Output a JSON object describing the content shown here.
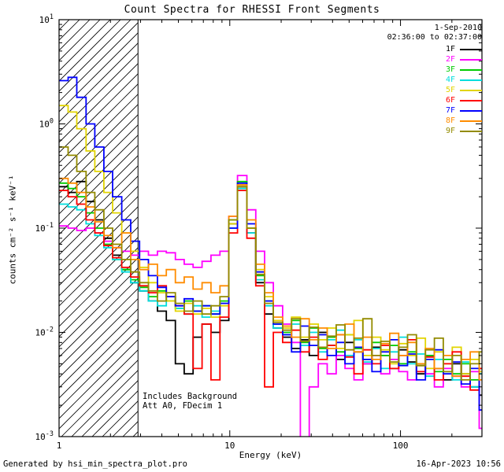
{
  "legend": {
    "date": "1-Sep-2010",
    "time_range": "02:36:00 to 02:37:00"
  },
  "annotations": {
    "line1": "Includes Background",
    "line2": "Att A0, FDecim 1"
  },
  "footer": {
    "left": "Generated by hsi_min_spectra_plot.pro",
    "right": "16-Apr-2023 10:56"
  },
  "chart_data": {
    "type": "line",
    "style": "stepped-histogram",
    "title": "Count Spectra for RHESSI Front Segments",
    "background": "#ffffff",
    "axis_color": "#000000",
    "grid": false,
    "legend_position": "top-right-inside",
    "x_axis": {
      "label": "Energy (keV)",
      "scale": "log",
      "range": [
        1,
        300
      ],
      "ticks": [
        {
          "label": "1",
          "value": 1
        },
        {
          "label": "10",
          "value": 10
        },
        {
          "label": "100",
          "value": 100
        }
      ]
    },
    "y_axis": {
      "label": "counts cm⁻² s⁻¹ keV⁻¹",
      "scale": "log",
      "range": [
        0.001,
        10
      ],
      "ticks": [
        {
          "label": "10⁻³",
          "exponent": -3,
          "value": 0.001
        },
        {
          "label": "10⁻²",
          "exponent": -2,
          "value": 0.01
        },
        {
          "label": "10⁻¹",
          "exponent": -1,
          "value": 0.1
        },
        {
          "label": "10⁰",
          "exponent": 0,
          "value": 1
        },
        {
          "label": "10¹",
          "exponent": 1,
          "value": 10
        }
      ]
    },
    "hatched_region": {
      "x_start": 1,
      "x_end": 2.9,
      "style": "diagonal-hatch"
    },
    "energies_keV": [
      1.0,
      1.13,
      1.27,
      1.44,
      1.62,
      1.83,
      2.06,
      2.33,
      2.63,
      2.96,
      3.34,
      3.77,
      4.25,
      4.8,
      5.41,
      6.1,
      6.88,
      7.76,
      8.76,
      9.88,
      11.1,
      12.6,
      14.2,
      16.0,
      18.0,
      20.4,
      23.0,
      25.9,
      29.2,
      33.0,
      37.2,
      42.0,
      47.3,
      53.4,
      60.2,
      68.0,
      76.7,
      86.5,
      97.6,
      110,
      124,
      140,
      158,
      178,
      201,
      227,
      256,
      289
    ],
    "series": [
      {
        "name": "1F",
        "color": "#000000",
        "values": [
          0.25,
          0.22,
          0.28,
          0.18,
          0.12,
          0.08,
          0.055,
          0.04,
          0.03,
          0.025,
          0.02,
          0.016,
          0.013,
          0.005,
          0.004,
          0.009,
          0.012,
          0.01,
          0.013,
          0.11,
          0.25,
          0.09,
          0.03,
          0.015,
          0.011,
          0.009,
          0.007,
          0.0085,
          0.006,
          0.01,
          0.0075,
          0.0055,
          0.008,
          0.0065,
          0.005,
          0.0072,
          0.006,
          0.0045,
          0.0068,
          0.0052,
          0.004,
          0.006,
          0.0045,
          0.0035,
          0.005,
          0.004,
          0.003,
          0.0025
        ]
      },
      {
        "name": "2F",
        "color": "#ff00ff",
        "values": [
          0.105,
          0.1,
          0.095,
          0.1,
          0.09,
          0.075,
          0.065,
          0.06,
          0.055,
          0.06,
          0.055,
          0.06,
          0.058,
          0.05,
          0.045,
          0.042,
          0.048,
          0.055,
          0.06,
          0.13,
          0.32,
          0.15,
          0.06,
          0.03,
          0.018,
          0.012,
          0.008,
          0.0009,
          0.003,
          0.005,
          0.004,
          0.006,
          0.0045,
          0.0035,
          0.005,
          0.006,
          0.004,
          0.0055,
          0.0042,
          0.0035,
          0.0048,
          0.004,
          0.003,
          0.0045,
          0.0038,
          0.003,
          0.0042,
          0.0012
        ]
      },
      {
        "name": "3F",
        "color": "#00cc00",
        "values": [
          0.27,
          0.24,
          0.2,
          0.14,
          0.1,
          0.07,
          0.05,
          0.04,
          0.032,
          0.027,
          0.022,
          0.025,
          0.02,
          0.017,
          0.02,
          0.016,
          0.018,
          0.015,
          0.02,
          0.12,
          0.28,
          0.1,
          0.035,
          0.02,
          0.012,
          0.01,
          0.013,
          0.008,
          0.011,
          0.007,
          0.009,
          0.0065,
          0.0095,
          0.007,
          0.0055,
          0.008,
          0.006,
          0.0075,
          0.005,
          0.0065,
          0.0048,
          0.006,
          0.0042,
          0.0055,
          0.004,
          0.005,
          0.0035,
          0.0045
        ]
      },
      {
        "name": "4F",
        "color": "#00dddd",
        "values": [
          0.17,
          0.16,
          0.15,
          0.11,
          0.085,
          0.065,
          0.05,
          0.038,
          0.03,
          0.025,
          0.02,
          0.018,
          0.022,
          0.017,
          0.015,
          0.018,
          0.014,
          0.016,
          0.019,
          0.1,
          0.24,
          0.09,
          0.032,
          0.018,
          0.011,
          0.0095,
          0.012,
          0.0075,
          0.01,
          0.0065,
          0.0085,
          0.0105,
          0.006,
          0.0085,
          0.0052,
          0.007,
          0.0045,
          0.0065,
          0.009,
          0.005,
          0.0062,
          0.0038,
          0.0055,
          0.0042,
          0.0035,
          0.0052,
          0.003,
          0.004
        ]
      },
      {
        "name": "5F",
        "color": "#e2d400",
        "values": [
          1.5,
          1.3,
          0.9,
          0.55,
          0.35,
          0.22,
          0.14,
          0.09,
          0.06,
          0.042,
          0.03,
          0.024,
          0.02,
          0.016,
          0.019,
          0.015,
          0.017,
          0.014,
          0.018,
          0.11,
          0.26,
          0.1,
          0.04,
          0.022,
          0.013,
          0.011,
          0.014,
          0.009,
          0.012,
          0.0085,
          0.011,
          0.007,
          0.0095,
          0.013,
          0.006,
          0.009,
          0.0068,
          0.005,
          0.0078,
          0.006,
          0.0088,
          0.0045,
          0.0065,
          0.005,
          0.0072,
          0.004,
          0.0055,
          0.0042
        ]
      },
      {
        "name": "6F",
        "color": "#ff0000",
        "values": [
          0.23,
          0.2,
          0.17,
          0.12,
          0.09,
          0.068,
          0.052,
          0.042,
          0.034,
          0.028,
          0.024,
          0.028,
          0.022,
          0.018,
          0.015,
          0.0045,
          0.012,
          0.0035,
          0.014,
          0.09,
          0.23,
          0.08,
          0.028,
          0.003,
          0.01,
          0.008,
          0.0105,
          0.0065,
          0.009,
          0.0055,
          0.0075,
          0.0095,
          0.0058,
          0.004,
          0.0068,
          0.005,
          0.0075,
          0.0045,
          0.006,
          0.0085,
          0.0042,
          0.0058,
          0.0035,
          0.005,
          0.0065,
          0.0038,
          0.0028,
          0.0045
        ]
      },
      {
        "name": "7F",
        "color": "#0000ff",
        "values": [
          2.6,
          2.8,
          1.8,
          1.0,
          0.6,
          0.35,
          0.2,
          0.12,
          0.075,
          0.05,
          0.035,
          0.027,
          0.022,
          0.018,
          0.021,
          0.016,
          0.018,
          0.015,
          0.019,
          0.1,
          0.27,
          0.11,
          0.038,
          0.02,
          0.012,
          0.0095,
          0.0065,
          0.0115,
          0.0075,
          0.0095,
          0.006,
          0.008,
          0.005,
          0.0072,
          0.0055,
          0.0042,
          0.0065,
          0.0085,
          0.0048,
          0.0062,
          0.0035,
          0.0055,
          0.0068,
          0.004,
          0.0052,
          0.0032,
          0.0045,
          0.0018
        ]
      },
      {
        "name": "8F",
        "color": "#ff8c00",
        "values": [
          0.3,
          0.27,
          0.22,
          0.16,
          0.115,
          0.085,
          0.065,
          0.09,
          0.05,
          0.04,
          0.045,
          0.035,
          0.04,
          0.03,
          0.034,
          0.026,
          0.03,
          0.024,
          0.028,
          0.13,
          0.26,
          0.12,
          0.045,
          0.024,
          0.014,
          0.0115,
          0.009,
          0.0135,
          0.0085,
          0.011,
          0.007,
          0.0095,
          0.012,
          0.0065,
          0.009,
          0.0055,
          0.0078,
          0.0098,
          0.006,
          0.008,
          0.005,
          0.007,
          0.0045,
          0.006,
          0.0038,
          0.0055,
          0.0065,
          0.0035
        ]
      },
      {
        "name": "9F",
        "color": "#938b00",
        "values": [
          0.6,
          0.5,
          0.35,
          0.22,
          0.15,
          0.1,
          0.07,
          0.05,
          0.038,
          0.03,
          0.025,
          0.02,
          0.024,
          0.019,
          0.016,
          0.02,
          0.015,
          0.018,
          0.022,
          0.12,
          0.25,
          0.1,
          0.036,
          0.019,
          0.0125,
          0.0105,
          0.0135,
          0.0082,
          0.0112,
          0.0072,
          0.0092,
          0.0118,
          0.0068,
          0.0088,
          0.0135,
          0.006,
          0.0082,
          0.0052,
          0.0072,
          0.0095,
          0.0048,
          0.0068,
          0.0088,
          0.0042,
          0.006,
          0.0035,
          0.005,
          0.0065
        ]
      }
    ]
  }
}
